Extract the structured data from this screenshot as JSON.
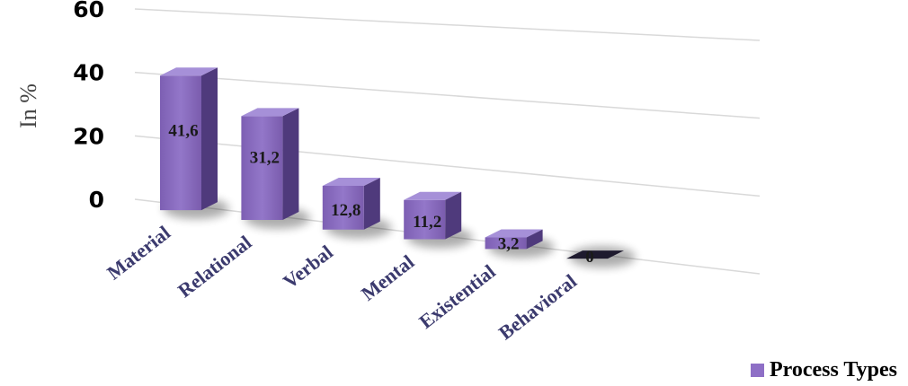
{
  "chart_data": {
    "type": "bar",
    "title": "",
    "xlabel": "",
    "ylabel": "In %",
    "ylim": [
      0,
      60
    ],
    "yticks": [
      "0",
      "20",
      "40",
      "60"
    ],
    "grid": true,
    "legend_position": "bottom-right",
    "categories": [
      "Material",
      "Relational",
      "Verbal",
      "Mental",
      "Existential",
      "Behavioral"
    ],
    "series": [
      {
        "name": "Process Types",
        "values": [
          41.6,
          31.2,
          12.8,
          11.2,
          3.2,
          0
        ],
        "labels": [
          "41,6",
          "31,2",
          "12,8",
          "11,2",
          "3,2",
          "0"
        ],
        "color": "#8e6fc6"
      }
    ]
  }
}
